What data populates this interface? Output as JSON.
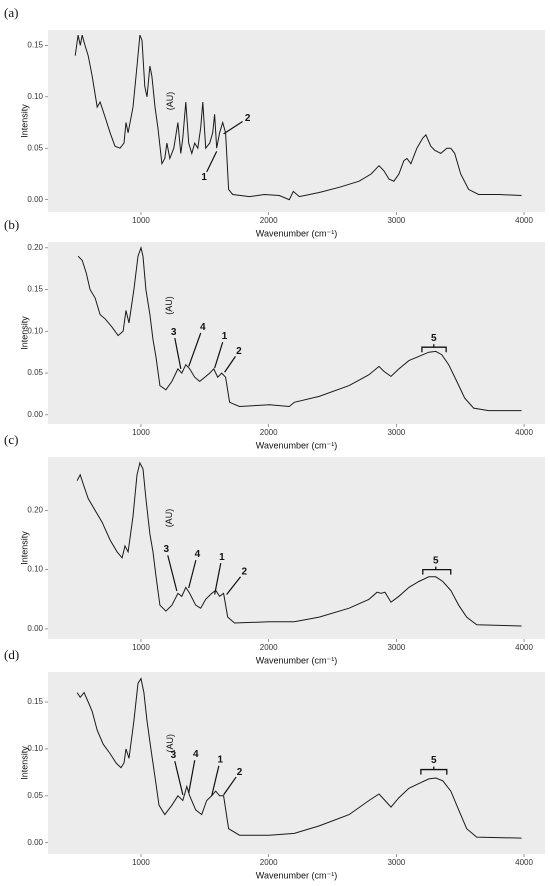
{
  "chart_data": [
    {
      "type": "line",
      "title": "(a)",
      "x_label": "Wavenumber (cm⁻¹)",
      "y_label": "Intensity",
      "color": "#1a1a1a",
      "x": [
        485,
        508,
        525,
        540,
        562,
        587,
        618,
        657,
        680,
        720,
        758,
        797,
        836,
        867,
        883,
        899,
        938,
        969,
        992,
        1008,
        1030,
        1047,
        1070,
        1086,
        1110,
        1133,
        1164,
        1187,
        1203,
        1226,
        1257,
        1289,
        1312,
        1328,
        1351,
        1374,
        1398,
        1421,
        1445,
        1468,
        1484,
        1507,
        1538,
        1562,
        1577,
        1593,
        1616,
        1640,
        1663,
        1686,
        1718,
        1850,
        1967,
        2084,
        2162,
        2193,
        2240,
        2396,
        2552,
        2708,
        2802,
        2864,
        2903,
        2942,
        2981,
        3020,
        3059,
        3083,
        3114,
        3161,
        3207,
        3231,
        3270,
        3301,
        3348,
        3395,
        3426,
        3457,
        3504,
        3566,
        3644,
        3800,
        3980
      ],
      "values": [
        0.14,
        0.16,
        0.15,
        0.16,
        0.15,
        0.14,
        0.12,
        0.09,
        0.095,
        0.08,
        0.065,
        0.052,
        0.05,
        0.055,
        0.075,
        0.065,
        0.09,
        0.13,
        0.16,
        0.155,
        0.11,
        0.1,
        0.13,
        0.12,
        0.09,
        0.07,
        0.035,
        0.04,
        0.055,
        0.04,
        0.05,
        0.075,
        0.045,
        0.06,
        0.095,
        0.055,
        0.045,
        0.055,
        0.05,
        0.07,
        0.095,
        0.05,
        0.055,
        0.065,
        0.083,
        0.05,
        0.065,
        0.075,
        0.065,
        0.01,
        0.005,
        0.003,
        0.005,
        0.004,
        0.0,
        0.008,
        0.003,
        0.007,
        0.012,
        0.018,
        0.025,
        0.033,
        0.028,
        0.02,
        0.018,
        0.025,
        0.038,
        0.04,
        0.035,
        0.05,
        0.06,
        0.063,
        0.052,
        0.048,
        0.045,
        0.05,
        0.05,
        0.045,
        0.025,
        0.01,
        0.005,
        0.005,
        0.004
      ],
      "xlim": [
        272,
        4164
      ],
      "xticks": [
        1000,
        2000,
        3000,
        4000
      ],
      "ylim": [
        -0.012,
        0.165
      ],
      "yticks": [
        {
          "value": 0,
          "label": "0.00"
        },
        {
          "value": 0.05,
          "label": "0.05"
        },
        {
          "value": 0.1,
          "label": "0.10"
        },
        {
          "value": 0.15,
          "label": "0.15"
        }
      ],
      "unit_label": {
        "text": "(AU)",
        "x": 1234,
        "y": 0.096
      },
      "annotations": [
        {
          "text": "1",
          "x": 1515,
          "y": 0.027,
          "to": [
            1593,
            0.047
          ]
        },
        {
          "text": "2",
          "x": 1796,
          "y": 0.076,
          "to": [
            1647,
            0.064
          ]
        }
      ]
    },
    {
      "type": "line",
      "title": "(b)",
      "x_label": "Wavenumber (cm⁻¹)",
      "y_label": "Intensity",
      "color": "#1a1a1a",
      "x": [
        508,
        540,
        571,
        602,
        641,
        680,
        719,
        774,
        821,
        860,
        883,
        906,
        945,
        977,
        1000,
        1016,
        1039,
        1070,
        1094,
        1117,
        1148,
        1195,
        1242,
        1289,
        1320,
        1351,
        1382,
        1421,
        1460,
        1500,
        1538,
        1570,
        1601,
        1632,
        1663,
        1694,
        1772,
        2006,
        2162,
        2201,
        2396,
        2630,
        2786,
        2864,
        2903,
        2958,
        3020,
        3098,
        3176,
        3254,
        3309,
        3356,
        3410,
        3473,
        3535,
        3605,
        3722,
        3980
      ],
      "values": [
        0.19,
        0.185,
        0.17,
        0.15,
        0.14,
        0.12,
        0.115,
        0.105,
        0.095,
        0.1,
        0.125,
        0.11,
        0.15,
        0.19,
        0.2,
        0.19,
        0.15,
        0.12,
        0.09,
        0.07,
        0.035,
        0.03,
        0.04,
        0.055,
        0.05,
        0.06,
        0.055,
        0.045,
        0.04,
        0.045,
        0.05,
        0.055,
        0.045,
        0.05,
        0.045,
        0.015,
        0.01,
        0.012,
        0.01,
        0.015,
        0.022,
        0.035,
        0.048,
        0.058,
        0.052,
        0.046,
        0.055,
        0.065,
        0.07,
        0.075,
        0.076,
        0.072,
        0.06,
        0.04,
        0.02,
        0.008,
        0.005,
        0.005
      ],
      "xlim": [
        272,
        4164
      ],
      "xticks": [
        1000,
        2000,
        3000,
        4000
      ],
      "ylim": [
        -0.011,
        0.207
      ],
      "yticks": [
        {
          "value": 0,
          "label": "0.00"
        },
        {
          "value": 0.05,
          "label": "0.05"
        },
        {
          "value": 0.1,
          "label": "0.10"
        },
        {
          "value": 0.15,
          "label": "0.15"
        },
        {
          "value": 0.2,
          "label": "0.20"
        }
      ],
      "unit_label": {
        "text": "(AU)",
        "x": 1226,
        "y": 0.131
      },
      "annotations": [
        {
          "text": "3",
          "x": 1265,
          "y": 0.092,
          "to": [
            1312,
            0.055
          ]
        },
        {
          "text": "4",
          "x": 1468,
          "y": 0.098,
          "to": [
            1374,
            0.058
          ]
        },
        {
          "text": "1",
          "x": 1640,
          "y": 0.087,
          "to": [
            1577,
            0.056
          ]
        },
        {
          "text": "2",
          "x": 1740,
          "y": 0.07,
          "to": [
            1655,
            0.051
          ]
        },
        {
          "text": "5",
          "x": 3293,
          "y": 0.081,
          "bracket": [
            3200,
            3390
          ]
        }
      ]
    },
    {
      "type": "line",
      "title": "(c)",
      "x_label": "Wavenumber (cm⁻¹)",
      "y_label": "Intensity",
      "color": "#1a1a1a",
      "x": [
        500,
        524,
        555,
        587,
        641,
        696,
        758,
        813,
        852,
        875,
        899,
        938,
        969,
        992,
        1016,
        1039,
        1070,
        1094,
        1117,
        1148,
        1195,
        1242,
        1289,
        1320,
        1351,
        1382,
        1429,
        1468,
        1507,
        1554,
        1585,
        1616,
        1647,
        1679,
        1733,
        2006,
        2201,
        2396,
        2630,
        2786,
        2849,
        2880,
        2911,
        2958,
        3020,
        3098,
        3176,
        3254,
        3309,
        3364,
        3426,
        3488,
        3551,
        3629,
        3980
      ],
      "values": [
        0.25,
        0.26,
        0.24,
        0.22,
        0.2,
        0.18,
        0.15,
        0.13,
        0.12,
        0.14,
        0.13,
        0.19,
        0.26,
        0.28,
        0.27,
        0.22,
        0.16,
        0.13,
        0.09,
        0.04,
        0.03,
        0.04,
        0.06,
        0.055,
        0.07,
        0.06,
        0.04,
        0.035,
        0.05,
        0.06,
        0.065,
        0.055,
        0.06,
        0.02,
        0.01,
        0.012,
        0.012,
        0.02,
        0.035,
        0.05,
        0.062,
        0.06,
        0.062,
        0.045,
        0.055,
        0.07,
        0.08,
        0.088,
        0.088,
        0.08,
        0.065,
        0.04,
        0.02,
        0.007,
        0.005
      ],
      "xlim": [
        272,
        4164
      ],
      "xticks": [
        1000,
        2000,
        3000,
        4000
      ],
      "ylim": [
        -0.017,
        0.29
      ],
      "yticks": [
        {
          "value": 0,
          "label": "0.00"
        },
        {
          "value": 0.1,
          "label": "0.10"
        },
        {
          "value": 0.2,
          "label": "0.20"
        }
      ],
      "unit_label": {
        "text": "(AU)",
        "x": 1226,
        "y": 0.187
      },
      "annotations": [
        {
          "text": "3",
          "x": 1210,
          "y": 0.124,
          "to": [
            1281,
            0.064
          ]
        },
        {
          "text": "4",
          "x": 1430,
          "y": 0.116,
          "to": [
            1374,
            0.069
          ]
        },
        {
          "text": "1",
          "x": 1625,
          "y": 0.111,
          "to": [
            1577,
            0.058
          ]
        },
        {
          "text": "2",
          "x": 1780,
          "y": 0.088,
          "to": [
            1671,
            0.058
          ]
        },
        {
          "text": "5",
          "x": 3309,
          "y": 0.1,
          "bracket": [
            3207,
            3426
          ]
        }
      ]
    },
    {
      "type": "line",
      "title": "(d)",
      "x_label": "Wavenumber (cm⁻¹)",
      "y_label": "Intensity",
      "color": "#1a1a1a",
      "x": [
        500,
        524,
        555,
        587,
        618,
        657,
        704,
        758,
        805,
        844,
        867,
        883,
        906,
        945,
        977,
        1000,
        1023,
        1047,
        1078,
        1110,
        1141,
        1187,
        1242,
        1289,
        1328,
        1359,
        1382,
        1429,
        1476,
        1515,
        1554,
        1585,
        1616,
        1647,
        1686,
        1772,
        2006,
        2201,
        2396,
        2630,
        2786,
        2864,
        2911,
        2958,
        3020,
        3098,
        3176,
        3254,
        3309,
        3364,
        3426,
        3488,
        3551,
        3629,
        3980
      ],
      "values": [
        0.16,
        0.155,
        0.16,
        0.15,
        0.14,
        0.12,
        0.105,
        0.095,
        0.085,
        0.08,
        0.085,
        0.1,
        0.09,
        0.13,
        0.17,
        0.175,
        0.16,
        0.13,
        0.1,
        0.07,
        0.04,
        0.03,
        0.04,
        0.05,
        0.045,
        0.06,
        0.05,
        0.035,
        0.03,
        0.045,
        0.05,
        0.055,
        0.05,
        0.05,
        0.015,
        0.008,
        0.008,
        0.01,
        0.018,
        0.03,
        0.045,
        0.052,
        0.045,
        0.038,
        0.048,
        0.058,
        0.063,
        0.068,
        0.069,
        0.066,
        0.055,
        0.035,
        0.015,
        0.006,
        0.005
      ],
      "xlim": [
        272,
        4164
      ],
      "xticks": [
        1000,
        2000,
        3000,
        4000
      ],
      "ylim": [
        -0.012,
        0.182
      ],
      "yticks": [
        {
          "value": 0,
          "label": "0.00"
        },
        {
          "value": 0.05,
          "label": "0.05"
        },
        {
          "value": 0.1,
          "label": "0.10"
        },
        {
          "value": 0.15,
          "label": "0.15"
        }
      ],
      "unit_label": {
        "text": "(AU)",
        "x": 1234,
        "y": 0.106
      },
      "annotations": [
        {
          "text": "3",
          "x": 1265,
          "y": 0.087,
          "to": [
            1328,
            0.051
          ]
        },
        {
          "text": "4",
          "x": 1421,
          "y": 0.088,
          "to": [
            1374,
            0.053
          ]
        },
        {
          "text": "1",
          "x": 1610,
          "y": 0.082,
          "to": [
            1554,
            0.05
          ]
        },
        {
          "text": "2",
          "x": 1745,
          "y": 0.07,
          "to": [
            1647,
            0.051
          ]
        },
        {
          "text": "5",
          "x": 3293,
          "y": 0.078,
          "bracket": [
            3192,
            3395
          ]
        }
      ]
    }
  ]
}
